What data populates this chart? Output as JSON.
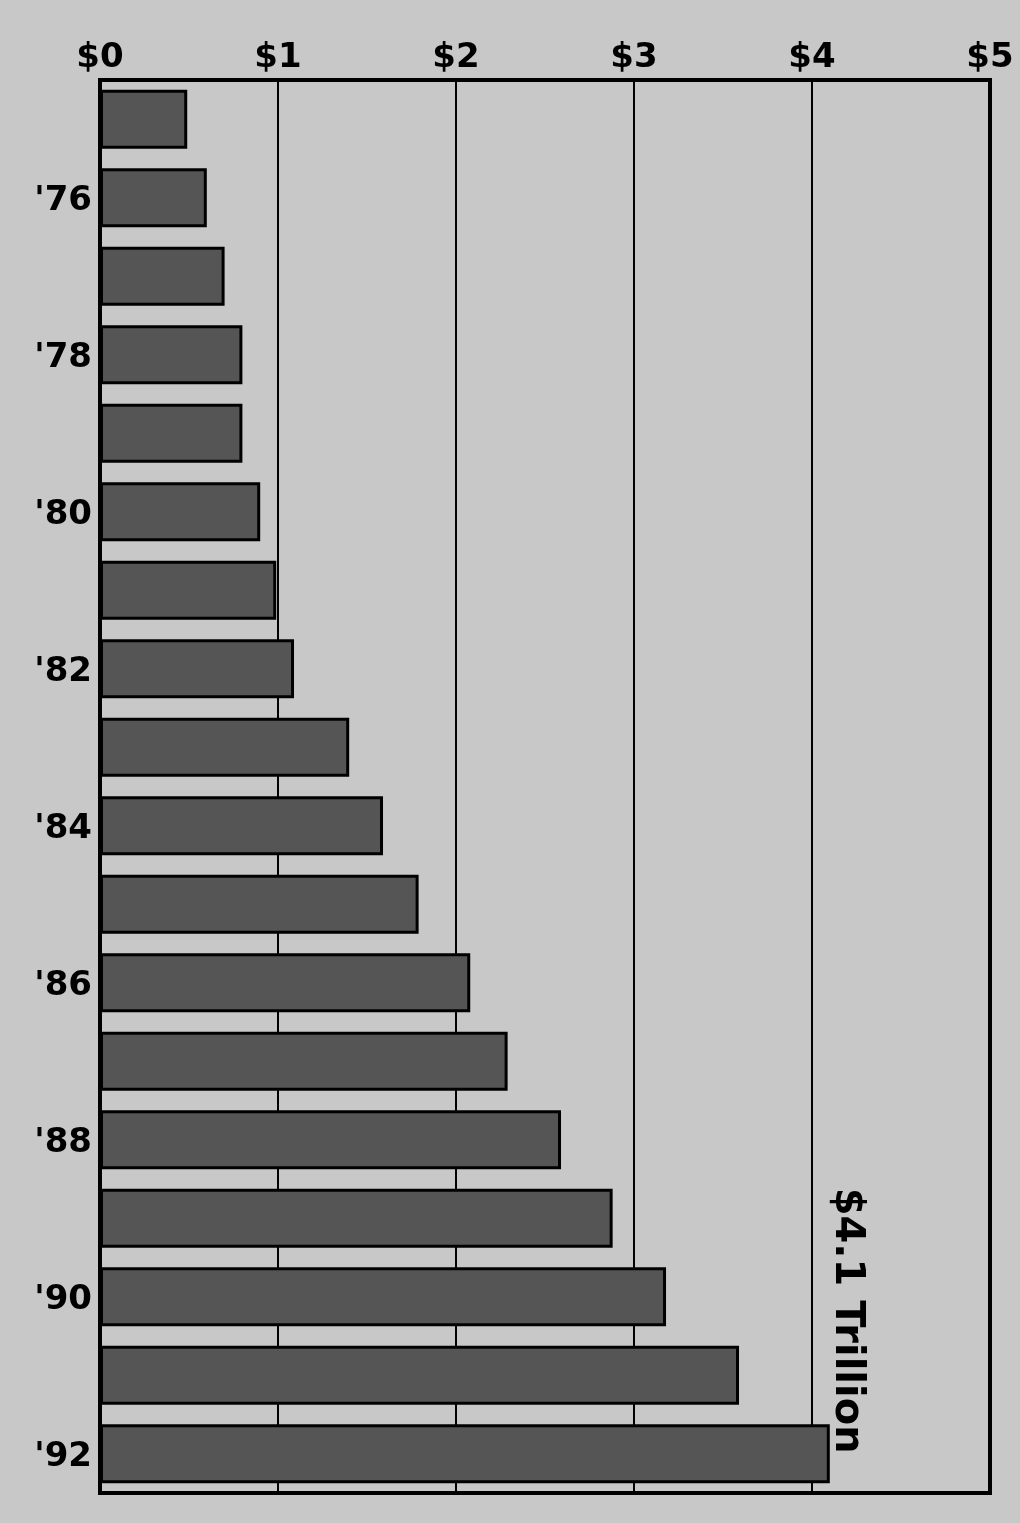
{
  "chart_data": {
    "type": "bar",
    "orientation": "horizontal",
    "categories": [
      null,
      "'76",
      null,
      "'78",
      null,
      "'80",
      null,
      "'82",
      null,
      "'84",
      null,
      "'86",
      null,
      "'88",
      null,
      "'90",
      null,
      "'92"
    ],
    "values": [
      0.49,
      0.6,
      0.7,
      0.8,
      0.8,
      0.9,
      0.99,
      1.09,
      1.4,
      1.59,
      1.79,
      2.08,
      2.29,
      2.59,
      2.88,
      3.18,
      3.59,
      4.1
    ],
    "color": "#555555",
    "xlim": [
      0,
      5
    ],
    "xticks": [
      {
        "value": 0,
        "label": "$0"
      },
      {
        "value": 1,
        "label": "$1"
      },
      {
        "value": 2,
        "label": "$2"
      },
      {
        "value": 3,
        "label": "$3"
      },
      {
        "value": 4,
        "label": "$4"
      },
      {
        "value": 5,
        "label": "$5"
      }
    ],
    "grid": "x",
    "annotations": [
      {
        "text": "$4.1 Trillion",
        "x": 4.1,
        "y": "'92"
      }
    ]
  }
}
